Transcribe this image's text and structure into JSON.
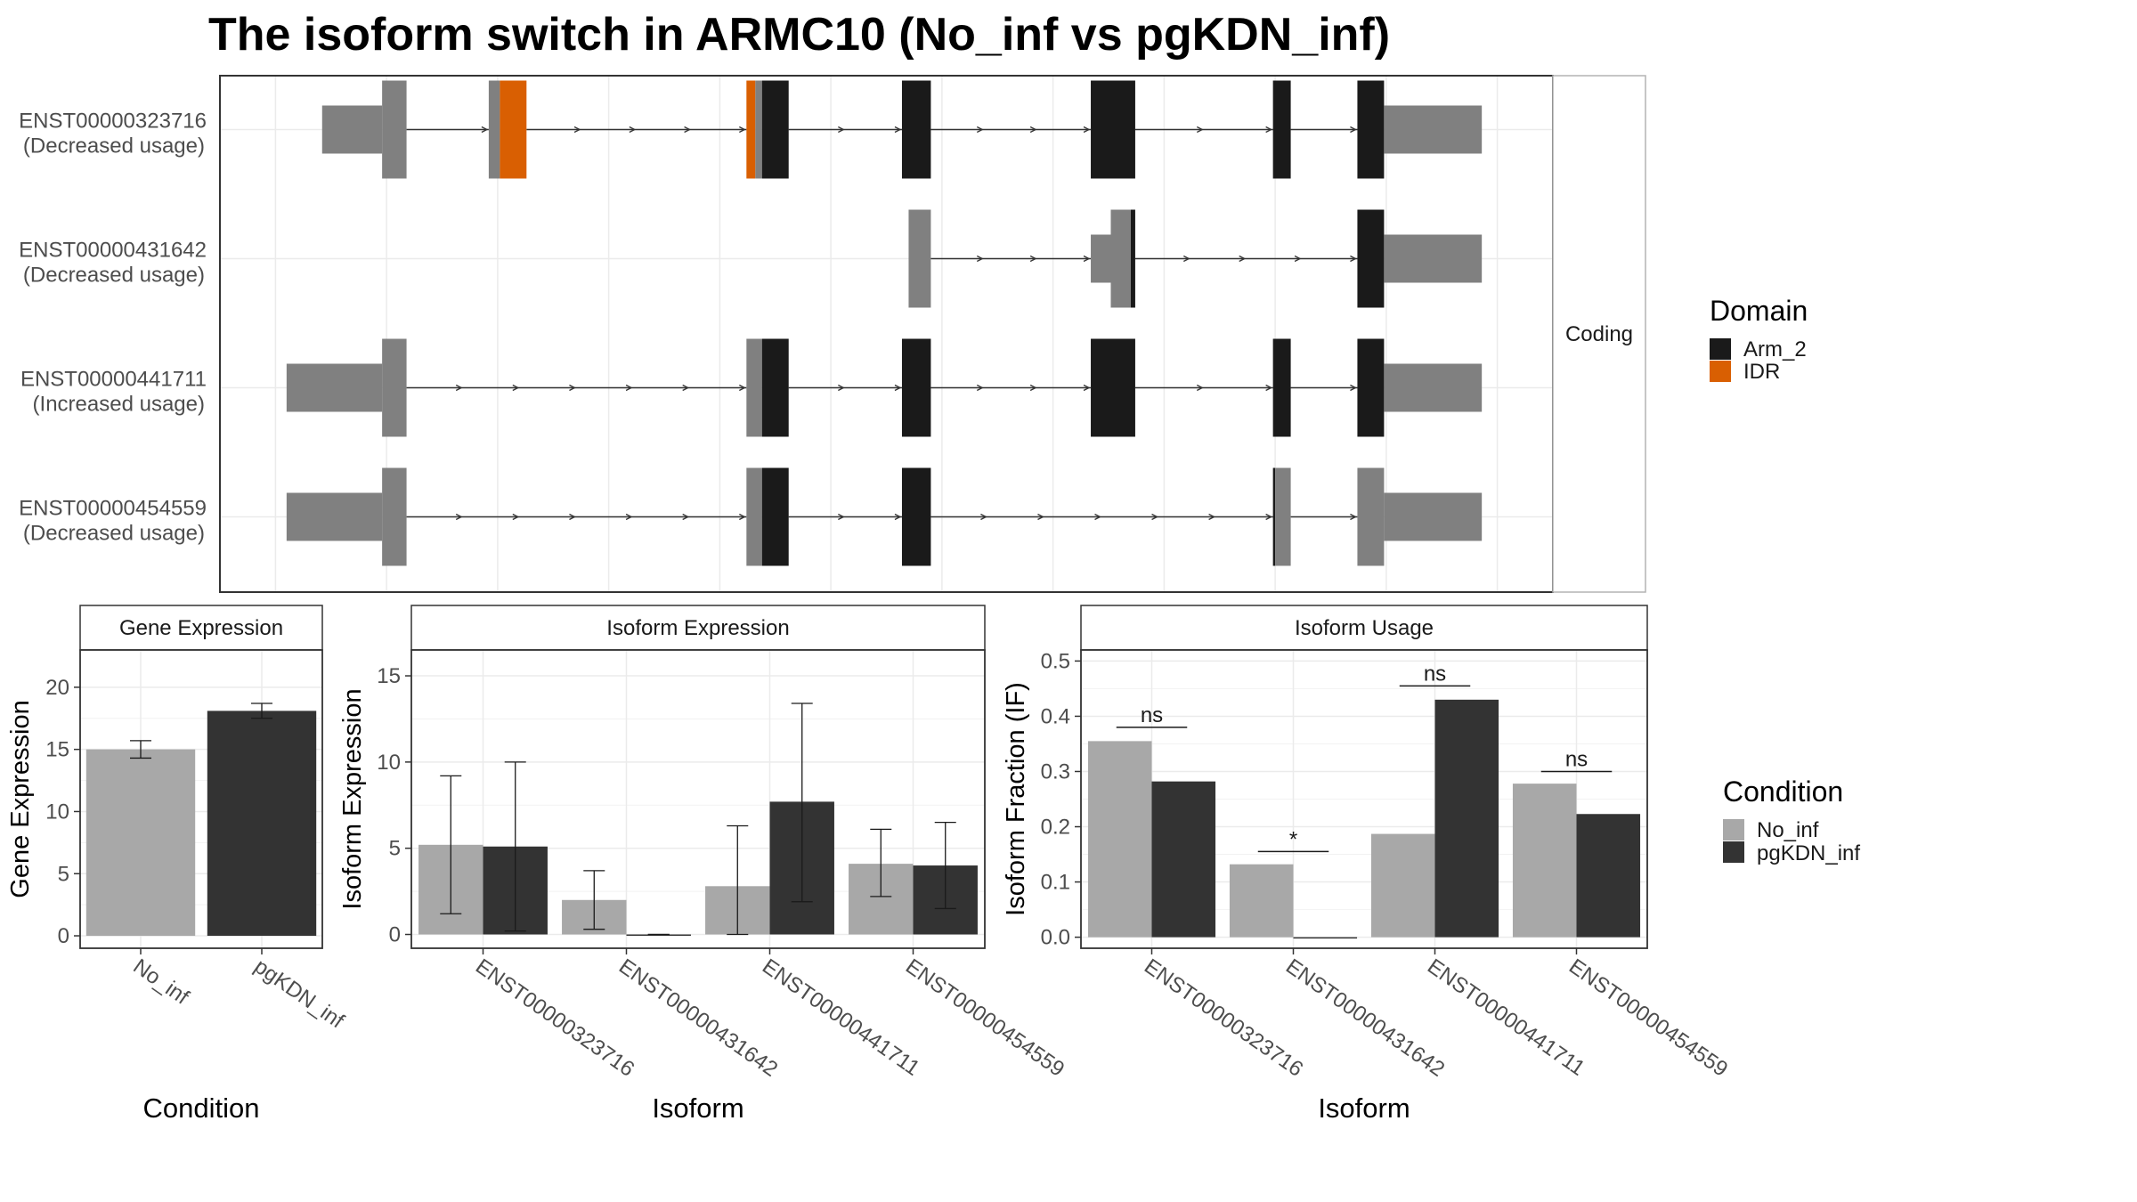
{
  "title": "The isoform switch in ARMC10 (No_inf vs pgKDN_inf)",
  "colors": {
    "no_inf": "#a8a8a8",
    "pgkdn_inf": "#333333",
    "utr": "#808080",
    "arm2": "#1a1a1a",
    "idr": "#d95f02",
    "intron": "#333333",
    "grid": "#ebebeb",
    "border": "#333333"
  },
  "structure": {
    "facet_label": "Coding",
    "legend_title": "Domain",
    "legend": [
      {
        "label": "Arm_2",
        "color": "#1a1a1a"
      },
      {
        "label": "IDR",
        "color": "#d95f02"
      }
    ],
    "transcripts": [
      {
        "id": "ENST00000323716",
        "usage": "(Decreased usage)",
        "exons": [
          {
            "start": 46,
            "end": 73,
            "type": "utr"
          },
          {
            "start": 73,
            "end": 84,
            "type": "cds"
          },
          {
            "start": 121,
            "end": 126,
            "type": "cds"
          },
          {
            "start": 126,
            "end": 138,
            "type": "idr"
          },
          {
            "start": 237,
            "end": 241,
            "type": "idr"
          },
          {
            "start": 241,
            "end": 244,
            "type": "cds"
          },
          {
            "start": 244,
            "end": 256,
            "type": "arm2"
          },
          {
            "start": 307,
            "end": 320,
            "type": "arm2"
          },
          {
            "start": 392,
            "end": 412,
            "type": "arm2"
          },
          {
            "start": 474,
            "end": 482,
            "type": "arm2"
          },
          {
            "start": 512,
            "end": 524,
            "type": "arm2"
          },
          {
            "start": 524,
            "end": 568,
            "type": "utr"
          }
        ]
      },
      {
        "id": "ENST00000431642",
        "usage": "(Decreased usage)",
        "exons": [
          {
            "start": 310,
            "end": 320,
            "type": "cds"
          },
          {
            "start": 392,
            "end": 401,
            "type": "utr"
          },
          {
            "start": 401,
            "end": 410,
            "type": "cds"
          },
          {
            "start": 410,
            "end": 412,
            "type": "arm2"
          },
          {
            "start": 512,
            "end": 524,
            "type": "arm2"
          },
          {
            "start": 524,
            "end": 568,
            "type": "utr"
          }
        ]
      },
      {
        "id": "ENST00000441711",
        "usage": "(Increased usage)",
        "exons": [
          {
            "start": 30,
            "end": 73,
            "type": "utr"
          },
          {
            "start": 73,
            "end": 84,
            "type": "cds"
          },
          {
            "start": 237,
            "end": 244,
            "type": "cds"
          },
          {
            "start": 244,
            "end": 256,
            "type": "arm2"
          },
          {
            "start": 307,
            "end": 320,
            "type": "arm2"
          },
          {
            "start": 392,
            "end": 412,
            "type": "arm2"
          },
          {
            "start": 474,
            "end": 482,
            "type": "arm2"
          },
          {
            "start": 512,
            "end": 524,
            "type": "arm2"
          },
          {
            "start": 524,
            "end": 568,
            "type": "utr"
          }
        ]
      },
      {
        "id": "ENST00000454559",
        "usage": "(Decreased usage)",
        "exons": [
          {
            "start": 30,
            "end": 73,
            "type": "utr"
          },
          {
            "start": 73,
            "end": 84,
            "type": "cds"
          },
          {
            "start": 237,
            "end": 244,
            "type": "cds"
          },
          {
            "start": 244,
            "end": 256,
            "type": "arm2"
          },
          {
            "start": 307,
            "end": 320,
            "type": "arm2"
          },
          {
            "start": 474,
            "end": 475,
            "type": "arm2"
          },
          {
            "start": 475,
            "end": 482,
            "type": "cds"
          },
          {
            "start": 512,
            "end": 524,
            "type": "cds"
          },
          {
            "start": 524,
            "end": 568,
            "type": "utr"
          }
        ]
      }
    ]
  },
  "chart_data": [
    {
      "type": "bar",
      "panel": "Gene Expression",
      "xlabel": "Condition",
      "ylabel": "Gene Expression",
      "categories": [
        "No_inf",
        "pgKDN_inf"
      ],
      "values": [
        15.0,
        18.1
      ],
      "error_low": [
        14.3,
        17.5
      ],
      "error_high": [
        15.7,
        18.7
      ],
      "ylim": [
        -1,
        23
      ],
      "yticks": [
        0,
        5,
        10,
        15,
        20
      ]
    },
    {
      "type": "bar",
      "panel": "Isoform Expression",
      "xlabel": "Isoform",
      "ylabel": "Isoform Expression",
      "categories": [
        "ENST00000323716",
        "ENST00000431642",
        "ENST00000441711",
        "ENST00000454559"
      ],
      "series": [
        {
          "condition": "No_inf",
          "values": [
            5.2,
            2.0,
            2.8,
            4.1
          ],
          "error_low": [
            1.2,
            0.3,
            0.0,
            2.2
          ],
          "error_high": [
            9.2,
            3.7,
            6.3,
            6.1
          ]
        },
        {
          "condition": "pgKDN_inf",
          "values": [
            5.1,
            0.0,
            7.7,
            4.0
          ],
          "error_low": [
            0.2,
            0.0,
            1.9,
            1.5
          ],
          "error_high": [
            10.0,
            0.0,
            13.4,
            6.5
          ]
        }
      ],
      "ylim": [
        -0.8,
        16.5
      ],
      "yticks": [
        0,
        5,
        10,
        15
      ]
    },
    {
      "type": "bar",
      "panel": "Isoform Usage",
      "xlabel": "Isoform",
      "ylabel": "Isoform Fraction (IF)",
      "categories": [
        "ENST00000323716",
        "ENST00000431642",
        "ENST00000441711",
        "ENST00000454559"
      ],
      "series": [
        {
          "condition": "No_inf",
          "values": [
            0.355,
            0.132,
            0.187,
            0.278
          ]
        },
        {
          "condition": "pgKDN_inf",
          "values": [
            0.282,
            0.0,
            0.43,
            0.223
          ]
        }
      ],
      "significance": [
        {
          "label": "ns",
          "y": 0.38
        },
        {
          "label": "*",
          "y": 0.155
        },
        {
          "label": "ns",
          "y": 0.455
        },
        {
          "label": "ns",
          "y": 0.3
        }
      ],
      "ylim": [
        -0.02,
        0.52
      ],
      "yticks": [
        0.0,
        0.1,
        0.2,
        0.3,
        0.4,
        0.5
      ]
    }
  ],
  "condition_legend": {
    "title": "Condition",
    "items": [
      {
        "label": "No_inf",
        "color": "#a8a8a8"
      },
      {
        "label": "pgKDN_inf",
        "color": "#333333"
      }
    ]
  }
}
